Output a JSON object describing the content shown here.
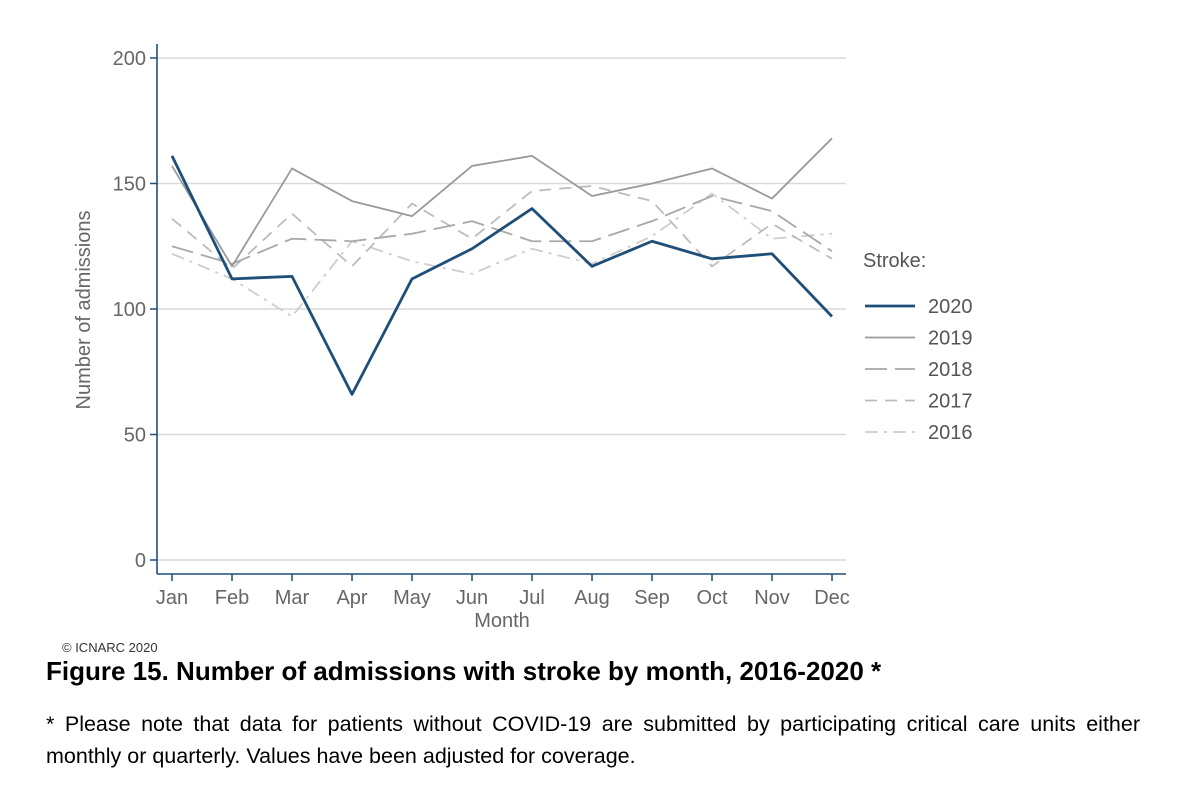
{
  "chart_data": {
    "type": "line",
    "title": "",
    "xlabel": "Month",
    "ylabel": "Number of admissions",
    "ylim": [
      0,
      200
    ],
    "yticks": [
      0,
      50,
      100,
      150,
      200
    ],
    "grid": true,
    "legend_title": "Stroke:",
    "legend_position": "right",
    "categories": [
      "Jan",
      "Feb",
      "Mar",
      "Apr",
      "May",
      "Jun",
      "Jul",
      "Aug",
      "Sep",
      "Oct",
      "Nov",
      "Dec"
    ],
    "series": [
      {
        "name": "2020",
        "color": "#1f4e79",
        "dash": "solid",
        "values": [
          161,
          112,
          113,
          66,
          112,
          124,
          140,
          117,
          127,
          120,
          122,
          97
        ]
      },
      {
        "name": "2019",
        "color": "#9a9a9a",
        "dash": "solid",
        "values": [
          157,
          117,
          156,
          143,
          137,
          157,
          161,
          145,
          150,
          156,
          144,
          168
        ]
      },
      {
        "name": "2018",
        "color": "#a8a8a8",
        "dash": "long-dash",
        "values": [
          125,
          118,
          128,
          127,
          130,
          135,
          127,
          127,
          135,
          145,
          139,
          123
        ]
      },
      {
        "name": "2017",
        "color": "#bcbcbc",
        "dash": "dash",
        "values": [
          136,
          116,
          138,
          117,
          142,
          128,
          147,
          149,
          143,
          117,
          134,
          120
        ]
      },
      {
        "name": "2016",
        "color": "#cdcdcd",
        "dash": "dash-dot",
        "values": [
          122,
          112,
          97,
          127,
          119,
          114,
          124,
          118,
          129,
          146,
          128,
          130
        ]
      }
    ]
  },
  "copyright": "© ICNARC 2020",
  "caption": {
    "title": "Figure 15. Number of admissions with stroke by month, 2016-2020 *",
    "note": "* Please note that data for patients without COVID-19 are submitted by participating critical care units either monthly or quarterly. Values have been adjusted for coverage."
  }
}
